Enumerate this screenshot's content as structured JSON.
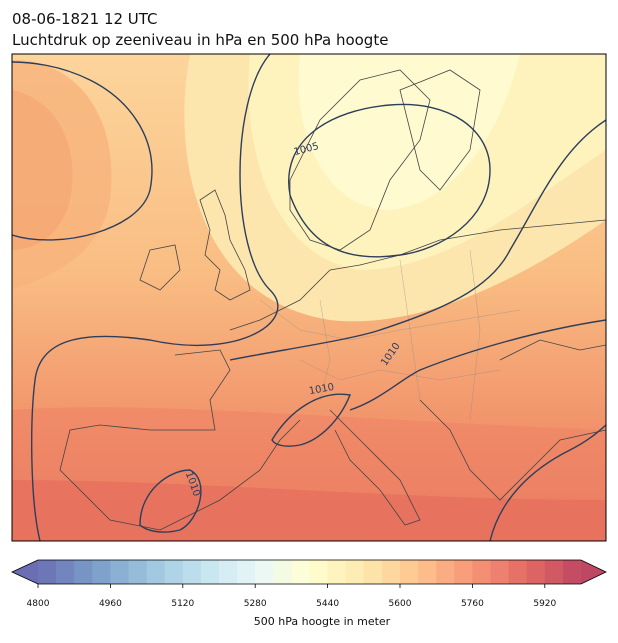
{
  "header": {
    "title": "08-06-1821 12 UTC",
    "subtitle": "Luchtdruk op zeeniveau in hPa en 500 hPa hoogte"
  },
  "contour_labels": [
    "1005",
    "1010",
    "1010",
    "1010"
  ],
  "colorbar": {
    "label": "500 hPa hoogte in meter",
    "range": [
      4800,
      6000
    ],
    "step": 40,
    "ticks": [
      4800,
      4960,
      5120,
      5280,
      5440,
      5600,
      5760,
      5920
    ]
  }
}
